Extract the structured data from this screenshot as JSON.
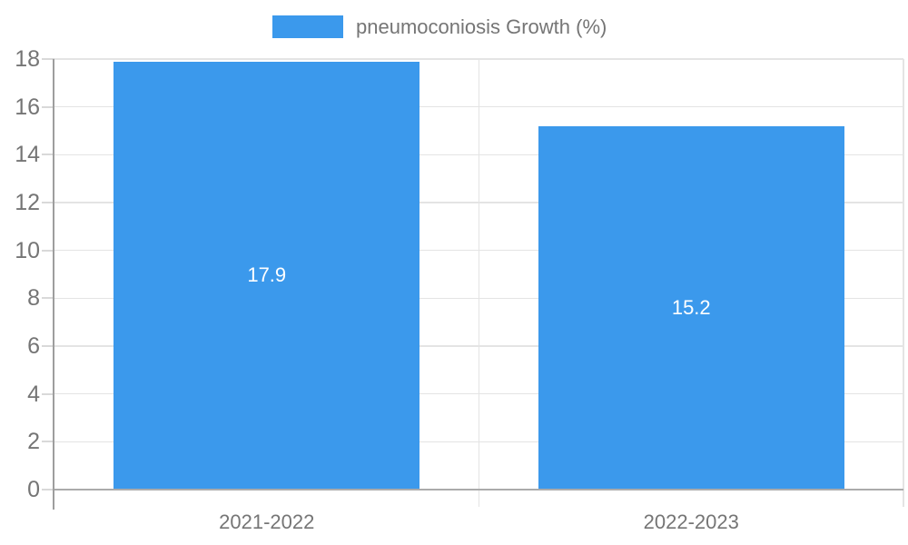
{
  "chart_data": {
    "type": "bar",
    "title": "pneumoconiosis Growth (%)",
    "categories": [
      "2021-2022",
      "2022-2023"
    ],
    "series": [
      {
        "name": "pneumoconiosis Growth (%)",
        "values": [
          17.9,
          15.2
        ]
      }
    ],
    "values": [
      17.9,
      15.2
    ],
    "value_labels": [
      "17.9",
      "15.2"
    ],
    "xlabel": "",
    "ylabel": "",
    "ylim": [
      0,
      18
    ],
    "yticks": [
      0,
      2,
      4,
      6,
      8,
      10,
      12,
      14,
      16,
      18
    ],
    "grid": true,
    "legend_position": "top-center",
    "colors": {
      "bar": "#3b99ec",
      "value_label": "#ffffff",
      "axis_label": "#757575",
      "legend_text": "#757575",
      "gridline": "#e4e4e4",
      "axis_line": "#9e9e9e",
      "baseline": "#ababab",
      "background": "#ffffff"
    }
  }
}
